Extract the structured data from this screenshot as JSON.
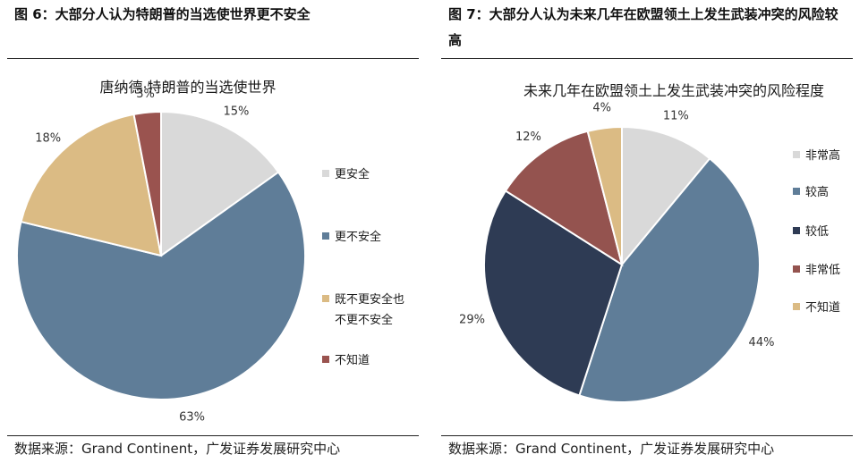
{
  "left": {
    "figure_title": "图 6：大部分人认为特朗普的当选使世界更不安全",
    "source": "数据来源：Grand Continent，广发证券发展研究中心"
  },
  "right": {
    "figure_title": "图 7：大部分人认为未来几年在欧盟领土上发生武装冲突的风险较高",
    "source": "数据来源：Grand Continent，广发证券发展研究中心"
  },
  "chart_data": [
    {
      "type": "pie",
      "title": "唐纳德·特朗普的当选使世界",
      "categories": [
        "更安全",
        "更不安全",
        "既不更安全也不更不安全",
        "不知道"
      ],
      "legend_lines": [
        [
          "更安全"
        ],
        [
          "更不安全"
        ],
        [
          "既不更安全也",
          "不更不安全"
        ],
        [
          "不知道"
        ]
      ],
      "values": [
        15,
        63,
        18,
        3
      ],
      "value_labels": [
        "15%",
        "63%",
        "18%",
        "3%"
      ],
      "colors": [
        "#d9d9d9",
        "#5f7d98",
        "#dbbb84",
        "#9a534f"
      ],
      "legend": "right",
      "start_angle_deg": 0,
      "direction": "clockwise"
    },
    {
      "type": "pie",
      "title": "未来几年在欧盟领土上发生武装冲突的风险程度",
      "categories": [
        "非常高",
        "较高",
        "较低",
        "非常低",
        "不知道"
      ],
      "legend_lines": [
        [
          "非常高"
        ],
        [
          "较高"
        ],
        [
          "较低"
        ],
        [
          "非常低"
        ],
        [
          "不知道"
        ]
      ],
      "values": [
        11,
        44,
        29,
        12,
        4
      ],
      "value_labels": [
        "11%",
        "44%",
        "29%",
        "12%",
        "4%"
      ],
      "colors": [
        "#d9d9d9",
        "#5f7d98",
        "#2e3b54",
        "#94534f",
        "#dbbb84"
      ],
      "legend": "right",
      "start_angle_deg": 0,
      "direction": "clockwise"
    }
  ]
}
